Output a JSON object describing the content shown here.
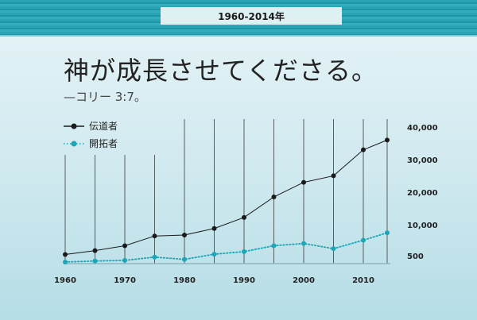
{
  "header": {
    "period_badge": "1960-2014年"
  },
  "heading": {
    "title": "神が成長させてくださる。",
    "subtitle": "—コリー 3:7。"
  },
  "colors": {
    "publishers": "#1a1a1a",
    "pioneers": "#1ba7b7",
    "accent_band": "#2aa4b5"
  },
  "chart_data": {
    "type": "line",
    "x": [
      1960,
      1965,
      1970,
      1975,
      1980,
      1985,
      1990,
      1995,
      2000,
      2005,
      2010,
      2014
    ],
    "series": [
      {
        "name": "伝道者",
        "values": [
          800,
          2000,
          3500,
          6500,
          6800,
          8800,
          12200,
          18500,
          23000,
          25000,
          33000,
          36000
        ],
        "style": "solid",
        "color": "#1a1a1a"
      },
      {
        "name": "開拓者",
        "values": [
          -1500,
          -1200,
          -1000,
          0,
          -700,
          900,
          1700,
          3500,
          4200,
          2600,
          5200,
          7500
        ],
        "style": "dotted",
        "color": "#1ba7b7"
      }
    ],
    "x_ticks": [
      "1960",
      "1970",
      "1980",
      "1990",
      "2000",
      "2010"
    ],
    "y_ticks": [
      {
        "value": 500,
        "label": "500"
      },
      {
        "value": 10000,
        "label": "10,000"
      },
      {
        "value": 20000,
        "label": "20,000"
      },
      {
        "value": 30000,
        "label": "30,000"
      },
      {
        "value": 40000,
        "label": "40,000"
      }
    ],
    "xlim": [
      1960,
      2014
    ],
    "ylim": [
      -2000,
      40000
    ],
    "xlabel": "",
    "ylabel": "",
    "grid": "vertical",
    "legend_position": "top-left"
  }
}
